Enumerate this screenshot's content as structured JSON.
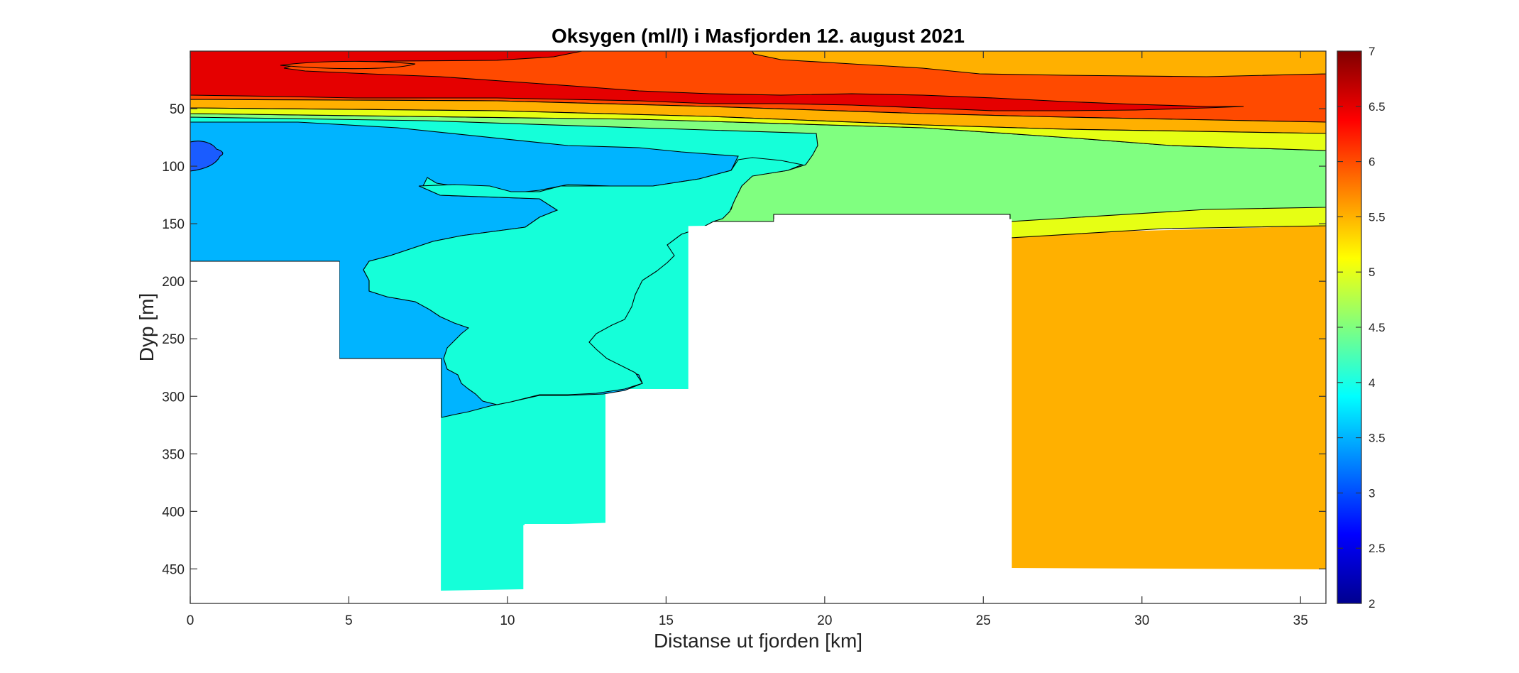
{
  "chart_data": {
    "type": "heatmap",
    "title": "Oksygen (ml/l) i Masfjorden 12. august 2021",
    "xlabel": "Distanse ut fjorden [km]",
    "ylabel": "Dyp [m]",
    "xlim": [
      0,
      35.8
    ],
    "ylim": [
      480,
      0
    ],
    "y_reversed": true,
    "xticks": [
      0,
      5,
      10,
      15,
      20,
      25,
      30,
      35
    ],
    "yticks": [
      50,
      100,
      150,
      200,
      250,
      300,
      350,
      400,
      450
    ],
    "colorbar": {
      "colormap": "jet",
      "range": [
        2,
        7
      ],
      "ticks": [
        2,
        2.5,
        3,
        3.5,
        4,
        4.5,
        5,
        5.5,
        6,
        6.5,
        7
      ]
    },
    "grid": false,
    "bottom_depth": [
      {
        "x": 0,
        "depth": 185
      },
      {
        "x": 2.0,
        "depth": 185
      },
      {
        "x": 2.0,
        "depth": 183
      },
      {
        "x": 4.7,
        "depth": 183
      },
      {
        "x": 4.7,
        "depth": 268
      },
      {
        "x": 7.9,
        "depth": 268
      },
      {
        "x": 7.9,
        "depth": 470
      },
      {
        "x": 10.5,
        "depth": 468
      },
      {
        "x": 10.5,
        "depth": 412
      },
      {
        "x": 13.1,
        "depth": 410
      },
      {
        "x": 13.1,
        "depth": 298
      },
      {
        "x": 15.7,
        "depth": 297
      },
      {
        "x": 15.7,
        "depth": 152
      },
      {
        "x": 18.4,
        "depth": 151
      },
      {
        "x": 18.4,
        "depth": 146
      },
      {
        "x": 25.9,
        "depth": 146
      },
      {
        "x": 25.9,
        "depth": 451
      },
      {
        "x": 35.8,
        "depth": 453
      }
    ],
    "contour_layers": [
      {
        "value": 6.0,
        "description_depth_range": [
          0,
          95
        ]
      },
      {
        "value": 5.5,
        "description_depth_range": [
          0,
          60
        ]
      },
      {
        "value": 5.0,
        "description_depth_range": [
          55,
          245
        ]
      },
      {
        "value": 4.5,
        "description_depth_range": [
          60,
          150
        ]
      },
      {
        "value": 4.0,
        "description_depth_range": [
          80,
          470
        ]
      },
      {
        "value": 3.5,
        "description_depth_range": [
          65,
          320
        ]
      },
      {
        "value": 3.0,
        "description_depth_range": [
          80,
          105
        ]
      }
    ]
  }
}
